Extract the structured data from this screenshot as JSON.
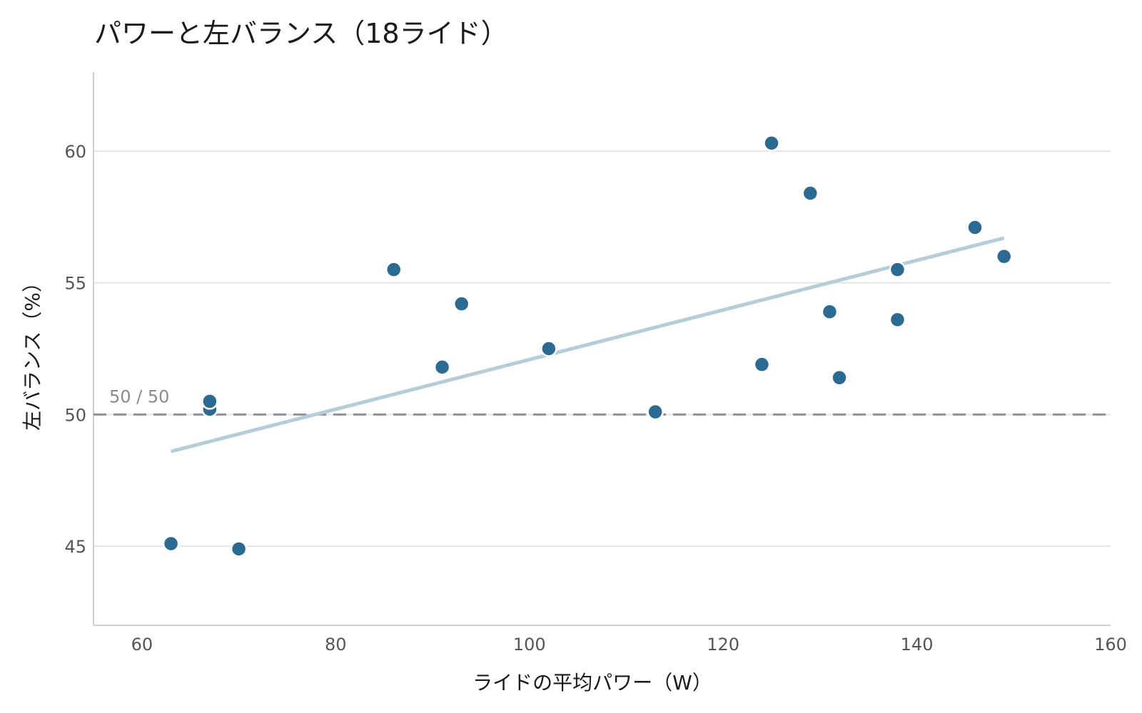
{
  "chart_data": {
    "type": "scatter",
    "title": "パワーと左バランス（18ライド）",
    "xlabel": "ライドの平均パワー（W）",
    "ylabel": "左バランス（%）",
    "xlim": [
      55,
      160
    ],
    "ylim": [
      42,
      63
    ],
    "xticks": [
      60,
      80,
      100,
      120,
      140,
      160
    ],
    "yticks": [
      45,
      50,
      55,
      60
    ],
    "grid": "horizontal",
    "points": [
      {
        "x": 63,
        "y": 45.1
      },
      {
        "x": 67,
        "y": 50.2
      },
      {
        "x": 67,
        "y": 50.5
      },
      {
        "x": 70,
        "y": 44.9
      },
      {
        "x": 86,
        "y": 55.5
      },
      {
        "x": 91,
        "y": 51.8
      },
      {
        "x": 93,
        "y": 54.2
      },
      {
        "x": 102,
        "y": 52.5
      },
      {
        "x": 113,
        "y": 50.1
      },
      {
        "x": 124,
        "y": 51.9
      },
      {
        "x": 125,
        "y": 60.3
      },
      {
        "x": 129,
        "y": 58.4
      },
      {
        "x": 131,
        "y": 53.9
      },
      {
        "x": 132,
        "y": 51.4
      },
      {
        "x": 138,
        "y": 55.5
      },
      {
        "x": 138,
        "y": 53.6
      },
      {
        "x": 146,
        "y": 57.1
      },
      {
        "x": 149,
        "y": 56.0
      }
    ],
    "trendline": {
      "x": [
        63,
        149
      ],
      "y": [
        48.6,
        56.7
      ]
    },
    "reference_line": {
      "y": 50,
      "label": "50 / 50"
    },
    "colors": {
      "point": "#2b6a93",
      "point_stroke": "#ffffff",
      "trend": "#b5cdd9",
      "reference": "#8d939a",
      "grid": "#e4e4e4",
      "axis": "#cfcfcf"
    }
  }
}
